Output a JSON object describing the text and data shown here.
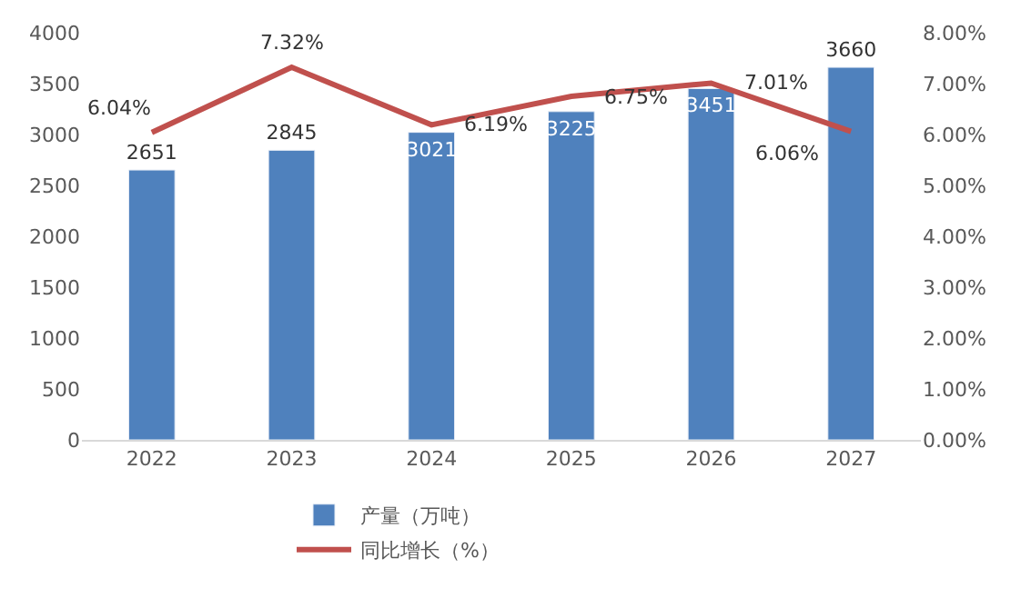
{
  "chart_data": {
    "type": "bar",
    "categories": [
      "2022",
      "2023",
      "2024",
      "2025",
      "2026",
      "2027"
    ],
    "series": [
      {
        "name": "产量（万吨）",
        "color": "#4f81bd",
        "values": [
          2651,
          2845,
          3021,
          3225,
          3451,
          3660
        ],
        "value_labels": [
          "2651",
          "2845",
          "3021",
          "3225",
          "3451",
          "3660"
        ]
      },
      {
        "name": "同比增长（%）",
        "type": "line",
        "axis": "y2",
        "color": "#c0504d",
        "values": [
          6.04,
          7.32,
          6.19,
          6.75,
          7.01,
          6.06
        ],
        "value_labels": [
          "6.04%",
          "7.32%",
          "6.19%",
          "6.75%",
          "7.01%",
          "6.06%"
        ]
      }
    ],
    "ylim": [
      0,
      4000
    ],
    "yticks": [
      0,
      500,
      1000,
      1500,
      2000,
      2500,
      3000,
      3500,
      4000
    ],
    "y2lim": [
      0,
      8
    ],
    "y2ticks": [
      {
        "value": 0,
        "label": "0.00%"
      },
      {
        "value": 1,
        "label": "1.00%"
      },
      {
        "value": 2,
        "label": "2.00%"
      },
      {
        "value": 3,
        "label": "3.00%"
      },
      {
        "value": 4,
        "label": "4.00%"
      },
      {
        "value": 5,
        "label": "5.00%"
      },
      {
        "value": 6,
        "label": "6.00%"
      },
      {
        "value": 7,
        "label": "7.00%"
      },
      {
        "value": 8,
        "label": "8.00%"
      }
    ],
    "legend": "bottom",
    "marker": "none",
    "line_style": "solid"
  }
}
